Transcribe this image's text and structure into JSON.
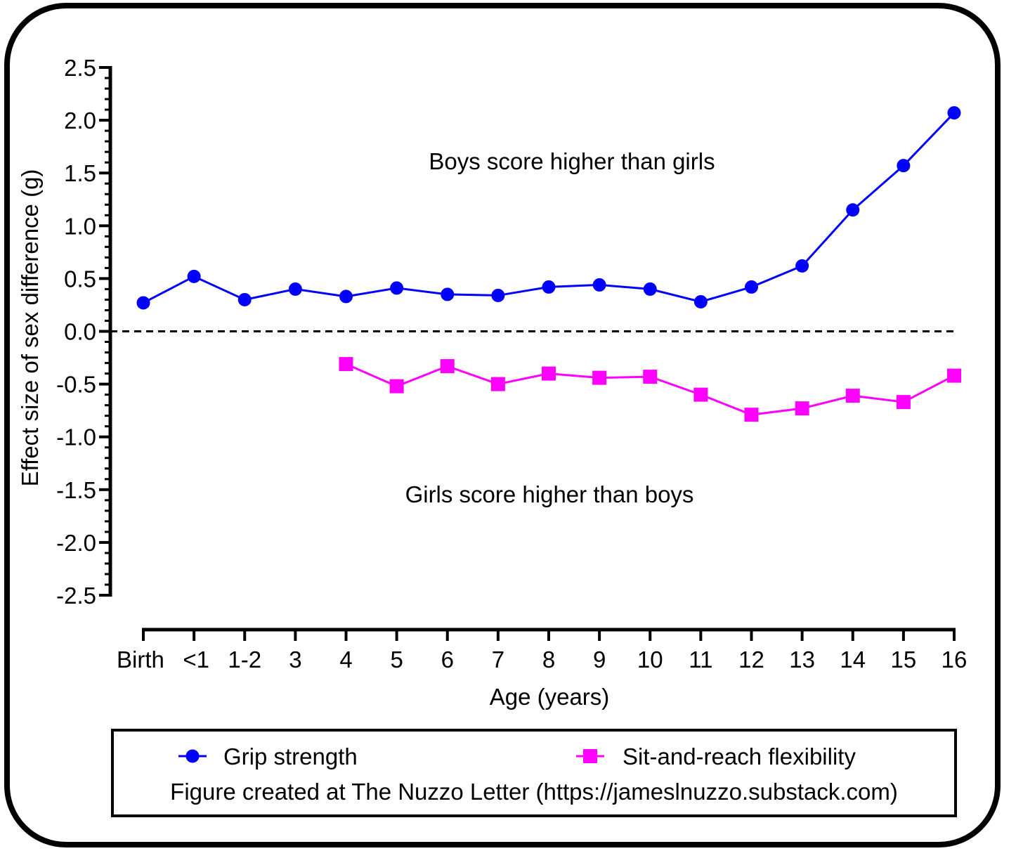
{
  "chart_data": {
    "type": "line",
    "title": "",
    "xlabel": "Age (years)",
    "ylabel": "Effect size of sex difference (g)",
    "categories": [
      "Birth",
      "<1",
      "1-2",
      "3",
      "4",
      "5",
      "6",
      "7",
      "8",
      "9",
      "10",
      "11",
      "12",
      "13",
      "14",
      "15",
      "16"
    ],
    "ylim": [
      -2.5,
      2.5
    ],
    "yticks": [
      "2.5",
      "2.0",
      "1.5",
      "1.0",
      "0.5",
      "0.0",
      "-0.5",
      "-1.0",
      "-1.5",
      "-2.0",
      "-2.5"
    ],
    "reference_line": 0.0,
    "grid": false,
    "legend_position": "bottom",
    "series": [
      {
        "name": "Grip strength",
        "color": "#0000ff",
        "marker": "circle",
        "values": [
          0.27,
          0.52,
          0.3,
          0.4,
          0.33,
          0.41,
          0.35,
          0.34,
          0.42,
          0.44,
          0.4,
          0.28,
          0.42,
          0.62,
          1.15,
          1.57,
          2.07
        ]
      },
      {
        "name": "Sit-and-reach flexibility",
        "color": "#ff00ff",
        "marker": "square",
        "values": [
          null,
          null,
          null,
          null,
          -0.31,
          -0.52,
          -0.33,
          -0.5,
          -0.4,
          -0.44,
          -0.43,
          -0.6,
          -0.79,
          -0.73,
          -0.61,
          -0.67,
          -0.42
        ]
      }
    ],
    "annotations": [
      "Boys score higher than girls",
      "Girls score higher than boys"
    ],
    "footer": "Figure created at The Nuzzo Letter (https://jameslnuzzo.substack.com)"
  }
}
